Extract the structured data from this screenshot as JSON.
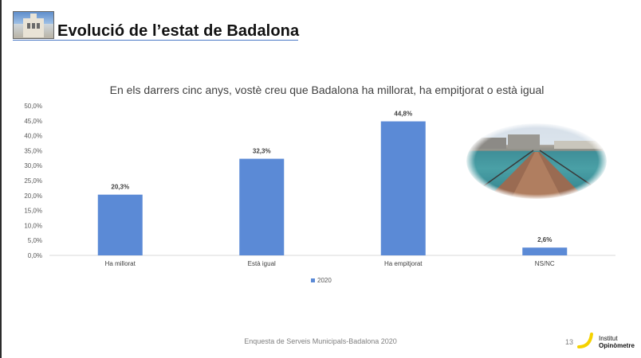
{
  "slide": {
    "title": "Evolució de l’estat de Badalona",
    "footer": "Enquesta de Serveis Municipals-Badalona 2020",
    "page_number": "13",
    "logo": {
      "line1": "Institut",
      "line2": "Opinòmetre"
    }
  },
  "chart_data": {
    "type": "bar",
    "title": "En els darrers cinc anys, vostè creu que Badalona ha millorat, ha empitjorat o està igual",
    "categories": [
      "Ha millorat",
      "Està igual",
      "Ha empitjorat",
      "NS/NC"
    ],
    "series": [
      {
        "name": "2020",
        "values": [
          20.3,
          32.3,
          44.8,
          2.6
        ],
        "color": "#5b8ad6"
      }
    ],
    "data_labels": [
      "20,3%",
      "32,3%",
      "44,8%",
      "2,6%"
    ],
    "y_ticks": [
      "0,0%",
      "5,0%",
      "10,0%",
      "15,0%",
      "20,0%",
      "25,0%",
      "30,0%",
      "35,0%",
      "40,0%",
      "45,0%",
      "50,0%"
    ],
    "ylim": [
      0,
      50
    ],
    "xlabel": "",
    "ylabel": "",
    "grid": false,
    "legend": "bottom"
  }
}
